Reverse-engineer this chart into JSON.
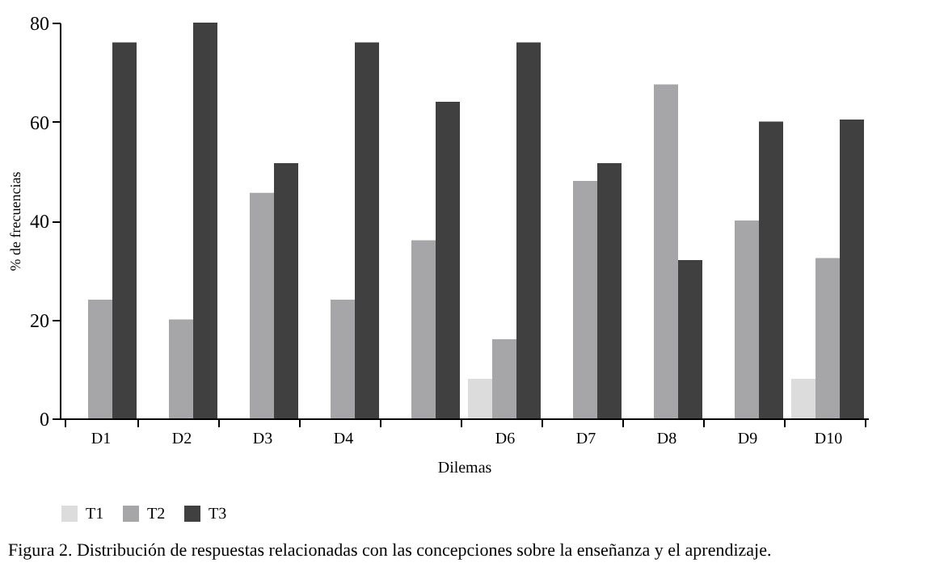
{
  "chart_data": {
    "type": "bar",
    "categories": [
      "D1",
      "D2",
      "D3",
      "D4",
      null,
      "D6",
      "D7",
      "D8",
      "D9",
      "D10"
    ],
    "series": [
      {
        "name": "T1",
        "color": "#dcdcdc",
        "values": [
          0,
          0,
          0,
          0,
          0,
          8,
          0,
          0,
          0,
          8
        ]
      },
      {
        "name": "T2",
        "color": "#a6a6a8",
        "values": [
          24,
          20,
          45.6,
          24,
          36,
          16,
          48,
          67.5,
          40,
          32.4
        ]
      },
      {
        "name": "T3",
        "color": "#404040",
        "values": [
          76,
          80,
          51.6,
          76,
          64,
          76,
          51.6,
          32,
          60,
          60.4
        ]
      }
    ],
    "xlabel": "Dilemas",
    "ylabel": "% de frecuencias",
    "ylim": [
      0,
      80
    ],
    "yticks": [
      0,
      20,
      40,
      60,
      80
    ],
    "grid": false,
    "legend": "bottom",
    "annotations": [
      "Figura 2. Distribución de respuestas relacionadas con las concepciones sobre la enseñanza y el aprendizaje."
    ]
  }
}
